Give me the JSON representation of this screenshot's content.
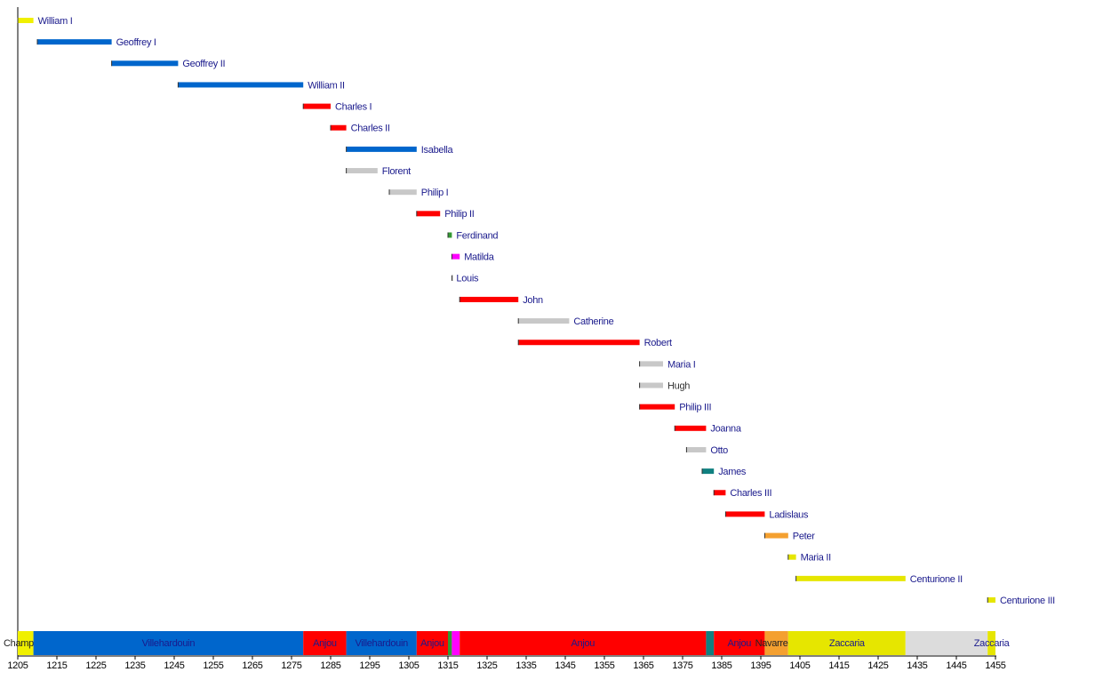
{
  "chart_data": {
    "type": "timeline",
    "xlim": [
      1205,
      1455
    ],
    "xticks": [
      1205,
      1215,
      1225,
      1235,
      1245,
      1255,
      1265,
      1275,
      1285,
      1295,
      1305,
      1315,
      1325,
      1335,
      1345,
      1355,
      1365,
      1375,
      1385,
      1395,
      1405,
      1415,
      1425,
      1435,
      1445,
      1455
    ],
    "rulers": [
      {
        "name": "William I",
        "start": 1205,
        "end": 1209,
        "color": "#f0f000",
        "label_color": "#1a1a8c"
      },
      {
        "name": "Geoffrey I",
        "start": 1210,
        "end": 1229,
        "color": "#0066cc",
        "label_color": "#1a1a8c"
      },
      {
        "name": "Geoffrey II",
        "start": 1229,
        "end": 1246,
        "color": "#0066cc",
        "label_color": "#1a1a8c"
      },
      {
        "name": "William II",
        "start": 1246,
        "end": 1278,
        "color": "#0066cc",
        "label_color": "#1a1a8c"
      },
      {
        "name": "Charles I",
        "start": 1278,
        "end": 1285,
        "color": "#ff0000",
        "label_color": "#1a1a8c"
      },
      {
        "name": "Charles II",
        "start": 1285,
        "end": 1289,
        "color": "#ff0000",
        "label_color": "#1a1a8c"
      },
      {
        "name": "Isabella",
        "start": 1289,
        "end": 1307,
        "color": "#0066cc",
        "label_color": "#1a1a8c"
      },
      {
        "name": "Florent",
        "start": 1289,
        "end": 1297,
        "color": "#c8c8c8",
        "label_color": "#1a1a8c"
      },
      {
        "name": "Philip I",
        "start": 1300,
        "end": 1307,
        "color": "#c8c8c8",
        "label_color": "#1a1a8c"
      },
      {
        "name": "Philip II",
        "start": 1307,
        "end": 1313,
        "color": "#ff0000",
        "label_color": "#1a1a8c"
      },
      {
        "name": "Ferdinand",
        "start": 1315,
        "end": 1316,
        "color": "#339933",
        "label_color": "#1a1a8c"
      },
      {
        "name": "Matilda",
        "start": 1316,
        "end": 1318,
        "color": "#ff00ff",
        "label_color": "#1a1a8c"
      },
      {
        "name": "Louis",
        "start": 1316,
        "end": 1316,
        "color": "#ffffff",
        "label_color": "#1a1a8c"
      },
      {
        "name": "John",
        "start": 1318,
        "end": 1333,
        "color": "#ff0000",
        "label_color": "#1a1a8c"
      },
      {
        "name": "Catherine",
        "start": 1333,
        "end": 1346,
        "color": "#c8c8c8",
        "label_color": "#1a1a8c"
      },
      {
        "name": "Robert",
        "start": 1333,
        "end": 1364,
        "color": "#ff0000",
        "label_color": "#1a1a8c"
      },
      {
        "name": "Maria I",
        "start": 1364,
        "end": 1370,
        "color": "#c8c8c8",
        "label_color": "#1a1a8c"
      },
      {
        "name": "Hugh",
        "start": 1364,
        "end": 1370,
        "color": "#c8c8c8",
        "label_color": "#333333"
      },
      {
        "name": "Philip III",
        "start": 1364,
        "end": 1373,
        "color": "#ff0000",
        "label_color": "#1a1a8c"
      },
      {
        "name": "Joanna",
        "start": 1373,
        "end": 1381,
        "color": "#ff0000",
        "label_color": "#1a1a8c"
      },
      {
        "name": "Otto",
        "start": 1376,
        "end": 1381,
        "color": "#c8c8c8",
        "label_color": "#1a1a8c"
      },
      {
        "name": "James",
        "start": 1380,
        "end": 1383,
        "color": "#108080",
        "label_color": "#1a1a8c"
      },
      {
        "name": "Charles III",
        "start": 1383,
        "end": 1386,
        "color": "#ff0000",
        "label_color": "#1a1a8c"
      },
      {
        "name": "Ladislaus",
        "start": 1386,
        "end": 1396,
        "color": "#ff0000",
        "label_color": "#1a1a8c"
      },
      {
        "name": "Peter",
        "start": 1396,
        "end": 1402,
        "color": "#f4a030",
        "label_color": "#1a1a8c"
      },
      {
        "name": "Maria II",
        "start": 1402,
        "end": 1404,
        "color": "#e6e600",
        "label_color": "#1a1a8c"
      },
      {
        "name": "Centurione II",
        "start": 1404,
        "end": 1432,
        "color": "#e6e600",
        "label_color": "#1a1a8c"
      },
      {
        "name": "Centurione III",
        "start": 1453,
        "end": 1455,
        "color": "#e6e600",
        "label_color": "#1a1a8c"
      }
    ],
    "periods": [
      {
        "name": "Champlitte",
        "start": 1205,
        "end": 1209,
        "color": "#f0f000",
        "label_color": "#222222"
      },
      {
        "name": "Villehardouin",
        "start": 1209,
        "end": 1278,
        "color": "#0066cc",
        "label_color": "#1a1a8c"
      },
      {
        "name": "Anjou",
        "start": 1278,
        "end": 1289,
        "color": "#ff0000",
        "label_color": "#1a1a8c"
      },
      {
        "name": "Villehardouin",
        "start": 1289,
        "end": 1307,
        "color": "#0066cc",
        "label_color": "#1a1a8c"
      },
      {
        "name": "Anjou",
        "start": 1307,
        "end": 1315,
        "color": "#ff0000",
        "label_color": "#1a1a8c"
      },
      {
        "name": null,
        "start": 1315,
        "end": 1316,
        "color": "#339933",
        "label_color": "#1a1a8c"
      },
      {
        "name": null,
        "start": 1316,
        "end": 1318,
        "color": "#ff00ff",
        "label_color": "#1a1a8c"
      },
      {
        "name": "Anjou",
        "start": 1318,
        "end": 1381,
        "color": "#ff0000",
        "label_color": "#1a1a8c"
      },
      {
        "name": null,
        "start": 1381,
        "end": 1383,
        "color": "#108080",
        "label_color": "#1a1a8c"
      },
      {
        "name": "Anjou",
        "start": 1383,
        "end": 1396,
        "color": "#ff0000",
        "label_color": "#1a1a8c"
      },
      {
        "name": "Navarrese",
        "start": 1396,
        "end": 1402,
        "color": "#f4a030",
        "label_color": "#222222"
      },
      {
        "name": "Zaccaria",
        "start": 1402,
        "end": 1432,
        "color": "#e6e600",
        "label_color": "#1a1a8c"
      },
      {
        "name": null,
        "start": 1432,
        "end": 1453,
        "color": "#dcdcdc",
        "label_color": "#1a1a8c"
      },
      {
        "name": "Zaccaria",
        "start": 1453,
        "end": 1455,
        "color": "#e6e600",
        "label_color": "#1a1a8c"
      }
    ]
  }
}
